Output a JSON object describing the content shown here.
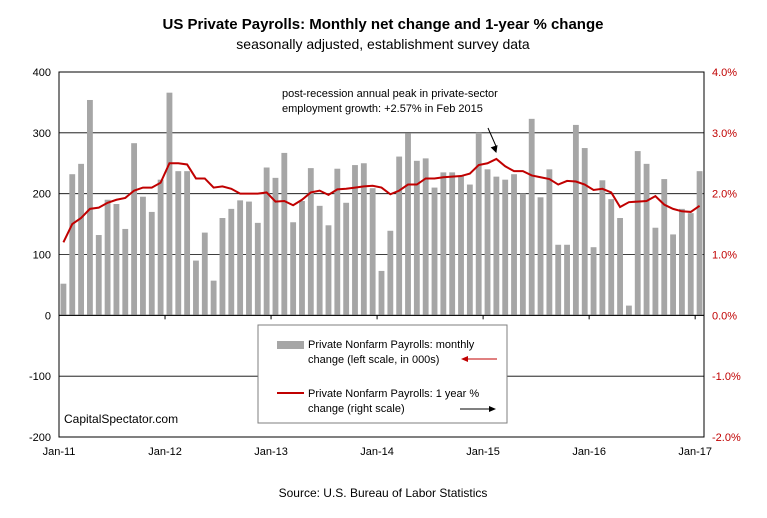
{
  "chart_data": {
    "type": "bar+line",
    "title": "US Private Payrolls: Monthly net change and 1-year % change",
    "subtitle": "seasonally adjusted, establishment survey data",
    "source": "Source: U.S. Bureau of Labor Statistics",
    "watermark": "CapitalSpectator.com",
    "annotation": {
      "line1": "post-recession annual peak in private-sector",
      "line2": "employment growth: +2.57% in Feb 2015",
      "target_date": "2015-02"
    },
    "x": [
      "2011-01",
      "2011-02",
      "2011-03",
      "2011-04",
      "2011-05",
      "2011-06",
      "2011-07",
      "2011-08",
      "2011-09",
      "2011-10",
      "2011-11",
      "2011-12",
      "2012-01",
      "2012-02",
      "2012-03",
      "2012-04",
      "2012-05",
      "2012-06",
      "2012-07",
      "2012-08",
      "2012-09",
      "2012-10",
      "2012-11",
      "2012-12",
      "2013-01",
      "2013-02",
      "2013-03",
      "2013-04",
      "2013-05",
      "2013-06",
      "2013-07",
      "2013-08",
      "2013-09",
      "2013-10",
      "2013-11",
      "2013-12",
      "2014-01",
      "2014-02",
      "2014-03",
      "2014-04",
      "2014-05",
      "2014-06",
      "2014-07",
      "2014-08",
      "2014-09",
      "2014-10",
      "2014-11",
      "2014-12",
      "2015-01",
      "2015-02",
      "2015-03",
      "2015-04",
      "2015-05",
      "2015-06",
      "2015-07",
      "2015-08",
      "2015-09",
      "2015-10",
      "2015-11",
      "2015-12",
      "2016-01",
      "2016-02",
      "2016-03",
      "2016-04",
      "2016-05",
      "2016-06",
      "2016-07",
      "2016-08",
      "2016-09",
      "2016-10",
      "2016-11",
      "2016-12",
      "2017-01"
    ],
    "x_tick_labels": [
      "Jan-11",
      "Jan-12",
      "Jan-13",
      "Jan-14",
      "Jan-15",
      "Jan-16",
      "Jan-17"
    ],
    "left_axis": {
      "ylim": [
        -200,
        400
      ],
      "ticks": [
        -200,
        -100,
        0,
        100,
        200,
        300,
        400
      ],
      "tick_labels": [
        "-200",
        "-100",
        "0",
        "100",
        "200",
        "300",
        "400"
      ]
    },
    "right_axis": {
      "ylim": [
        -2.0,
        4.0
      ],
      "ticks": [
        -2.0,
        -1.0,
        0.0,
        1.0,
        2.0,
        3.0,
        4.0
      ],
      "tick_labels": [
        "-2.0%",
        "-1.0%",
        "0.0%",
        "1.0%",
        "2.0%",
        "3.0%",
        "4.0%"
      ]
    },
    "grid": true,
    "series": [
      {
        "name": "Private Nonfarm Payrolls: monthly change (left scale, in 000s)",
        "legend_line1": "Private Nonfarm Payrolls: monthly",
        "legend_line2": "change (left scale, in 000s)",
        "type": "bar",
        "axis": "left",
        "color": "#a6a6a6",
        "values": [
          52,
          232,
          249,
          354,
          132,
          190,
          183,
          142,
          283,
          195,
          170,
          223,
          366,
          237,
          237,
          90,
          136,
          57,
          160,
          175,
          189,
          187,
          152,
          243,
          226,
          267,
          153,
          188,
          242,
          180,
          148,
          241,
          185,
          247,
          250,
          209,
          73,
          139,
          261,
          299,
          254,
          258,
          210,
          235,
          235,
          230,
          215,
          300,
          240,
          228,
          223,
          232,
          200,
          323,
          194,
          240,
          116,
          116,
          313,
          275,
          112,
          222,
          191,
          160,
          16,
          270,
          249,
          144,
          224,
          133,
          175,
          168,
          237
        ]
      },
      {
        "name": "Private Nonfarm Payrolls: 1 year % change (right scale)",
        "legend_line1": "Private Nonfarm Payrolls:  1 year %",
        "legend_line2": "change (right scale)",
        "type": "line",
        "axis": "right",
        "color": "#c00000",
        "values": [
          1.2,
          1.5,
          1.6,
          1.75,
          1.77,
          1.85,
          1.9,
          1.93,
          2.05,
          2.1,
          2.1,
          2.18,
          2.5,
          2.5,
          2.48,
          2.25,
          2.25,
          2.1,
          2.12,
          2.08,
          2.0,
          2.0,
          2.0,
          2.02,
          1.87,
          1.88,
          1.81,
          1.9,
          2.02,
          2.05,
          1.98,
          2.07,
          2.08,
          2.1,
          2.12,
          2.13,
          2.1,
          1.99,
          2.05,
          2.15,
          2.15,
          2.25,
          2.25,
          2.27,
          2.28,
          2.29,
          2.33,
          2.47,
          2.5,
          2.57,
          2.45,
          2.37,
          2.37,
          2.3,
          2.27,
          2.24,
          2.15,
          2.21,
          2.2,
          2.15,
          2.06,
          2.08,
          2.02,
          1.78,
          1.86,
          1.87,
          1.88,
          1.96,
          1.82,
          1.75,
          1.71,
          1.7,
          1.8
        ]
      }
    ]
  }
}
